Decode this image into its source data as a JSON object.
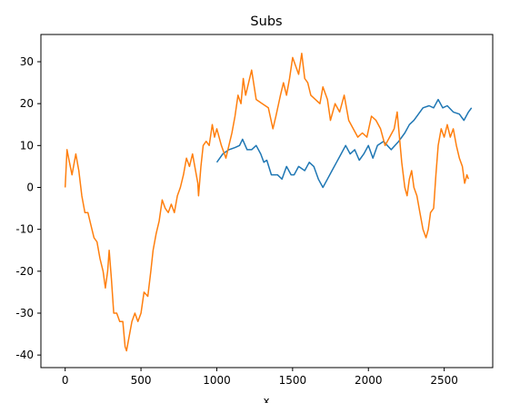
{
  "chart_data": {
    "type": "line",
    "title": "Subs",
    "xlabel": "x",
    "ylabel": "",
    "xlim": [
      -160,
      2820
    ],
    "ylim": [
      -43,
      36.5
    ],
    "x_ticks": [
      0,
      500,
      1000,
      1500,
      2000,
      2500
    ],
    "y_ticks": [
      -40,
      -30,
      -20,
      -10,
      0,
      10,
      20,
      30
    ],
    "grid": false,
    "series": [
      {
        "color": "#1f77b4",
        "points": [
          [
            1000,
            6
          ],
          [
            1040,
            8
          ],
          [
            1080,
            9
          ],
          [
            1120,
            9.5
          ],
          [
            1150,
            10
          ],
          [
            1170,
            11.5
          ],
          [
            1200,
            9
          ],
          [
            1230,
            9
          ],
          [
            1260,
            10
          ],
          [
            1290,
            8
          ],
          [
            1310,
            6
          ],
          [
            1330,
            6.5
          ],
          [
            1360,
            3
          ],
          [
            1400,
            3
          ],
          [
            1430,
            2
          ],
          [
            1460,
            5
          ],
          [
            1490,
            3
          ],
          [
            1510,
            3
          ],
          [
            1540,
            5
          ],
          [
            1580,
            4
          ],
          [
            1610,
            6
          ],
          [
            1640,
            5
          ],
          [
            1670,
            2
          ],
          [
            1700,
            0
          ],
          [
            1730,
            2
          ],
          [
            1760,
            4
          ],
          [
            1790,
            6
          ],
          [
            1820,
            8
          ],
          [
            1850,
            10
          ],
          [
            1880,
            8
          ],
          [
            1910,
            9
          ],
          [
            1940,
            6.5
          ],
          [
            1970,
            8
          ],
          [
            2000,
            10
          ],
          [
            2030,
            7
          ],
          [
            2060,
            10
          ],
          [
            2100,
            11
          ],
          [
            2150,
            9
          ],
          [
            2200,
            11
          ],
          [
            2240,
            13
          ],
          [
            2270,
            15
          ],
          [
            2300,
            16
          ],
          [
            2330,
            17.5
          ],
          [
            2360,
            19
          ],
          [
            2400,
            19.5
          ],
          [
            2430,
            19
          ],
          [
            2460,
            21
          ],
          [
            2490,
            19
          ],
          [
            2520,
            19.5
          ],
          [
            2560,
            18
          ],
          [
            2600,
            17.5
          ],
          [
            2630,
            16
          ],
          [
            2660,
            18
          ],
          [
            2680,
            19
          ]
        ]
      },
      {
        "color": "#ff7f0e",
        "points": [
          [
            0,
            0
          ],
          [
            12,
            9
          ],
          [
            28,
            6
          ],
          [
            45,
            3
          ],
          [
            70,
            8
          ],
          [
            90,
            4
          ],
          [
            110,
            -2
          ],
          [
            130,
            -6
          ],
          [
            150,
            -6
          ],
          [
            170,
            -9
          ],
          [
            190,
            -12
          ],
          [
            210,
            -13
          ],
          [
            230,
            -17
          ],
          [
            250,
            -20
          ],
          [
            265,
            -24
          ],
          [
            280,
            -20
          ],
          [
            290,
            -15
          ],
          [
            305,
            -22
          ],
          [
            320,
            -30
          ],
          [
            340,
            -30
          ],
          [
            360,
            -32
          ],
          [
            380,
            -32
          ],
          [
            395,
            -38
          ],
          [
            405,
            -39
          ],
          [
            420,
            -36
          ],
          [
            440,
            -32
          ],
          [
            460,
            -30
          ],
          [
            480,
            -32
          ],
          [
            500,
            -30
          ],
          [
            520,
            -25
          ],
          [
            545,
            -26
          ],
          [
            565,
            -20
          ],
          [
            580,
            -15
          ],
          [
            600,
            -11
          ],
          [
            620,
            -8
          ],
          [
            640,
            -3
          ],
          [
            660,
            -5
          ],
          [
            680,
            -6
          ],
          [
            700,
            -4
          ],
          [
            720,
            -6
          ],
          [
            740,
            -2
          ],
          [
            760,
            0
          ],
          [
            780,
            3
          ],
          [
            800,
            7
          ],
          [
            820,
            5
          ],
          [
            840,
            8
          ],
          [
            860,
            4
          ],
          [
            875,
            1
          ],
          [
            880,
            -2
          ],
          [
            895,
            5
          ],
          [
            910,
            10
          ],
          [
            930,
            11
          ],
          [
            950,
            10
          ],
          [
            970,
            15
          ],
          [
            985,
            12
          ],
          [
            1000,
            14
          ],
          [
            1030,
            10
          ],
          [
            1060,
            7
          ],
          [
            1080,
            10
          ],
          [
            1100,
            13
          ],
          [
            1120,
            17
          ],
          [
            1140,
            22
          ],
          [
            1160,
            20
          ],
          [
            1175,
            26
          ],
          [
            1190,
            22
          ],
          [
            1210,
            25
          ],
          [
            1230,
            28
          ],
          [
            1260,
            21
          ],
          [
            1300,
            20
          ],
          [
            1340,
            19
          ],
          [
            1370,
            14
          ],
          [
            1390,
            17
          ],
          [
            1420,
            22
          ],
          [
            1440,
            25
          ],
          [
            1460,
            22
          ],
          [
            1480,
            26
          ],
          [
            1500,
            31
          ],
          [
            1520,
            29
          ],
          [
            1540,
            27
          ],
          [
            1560,
            32
          ],
          [
            1580,
            26
          ],
          [
            1600,
            25
          ],
          [
            1620,
            22
          ],
          [
            1650,
            21
          ],
          [
            1680,
            20
          ],
          [
            1700,
            24
          ],
          [
            1730,
            21
          ],
          [
            1750,
            16
          ],
          [
            1780,
            20
          ],
          [
            1810,
            18
          ],
          [
            1840,
            22
          ],
          [
            1870,
            16
          ],
          [
            1900,
            14
          ],
          [
            1930,
            12
          ],
          [
            1960,
            13
          ],
          [
            1990,
            12
          ],
          [
            2020,
            17
          ],
          [
            2050,
            16
          ],
          [
            2080,
            14
          ],
          [
            2110,
            10
          ],
          [
            2140,
            12
          ],
          [
            2170,
            14
          ],
          [
            2190,
            18
          ],
          [
            2205,
            12
          ],
          [
            2220,
            6
          ],
          [
            2240,
            0
          ],
          [
            2255,
            -2
          ],
          [
            2270,
            2
          ],
          [
            2285,
            4
          ],
          [
            2300,
            0
          ],
          [
            2320,
            -2
          ],
          [
            2340,
            -6
          ],
          [
            2360,
            -10
          ],
          [
            2380,
            -12
          ],
          [
            2395,
            -10
          ],
          [
            2410,
            -6
          ],
          [
            2430,
            -5
          ],
          [
            2445,
            3
          ],
          [
            2460,
            10
          ],
          [
            2480,
            14
          ],
          [
            2500,
            12
          ],
          [
            2520,
            15
          ],
          [
            2540,
            12
          ],
          [
            2560,
            14
          ],
          [
            2580,
            10
          ],
          [
            2600,
            7
          ],
          [
            2620,
            5
          ],
          [
            2635,
            1
          ],
          [
            2650,
            3
          ],
          [
            2660,
            2
          ]
        ]
      }
    ]
  }
}
